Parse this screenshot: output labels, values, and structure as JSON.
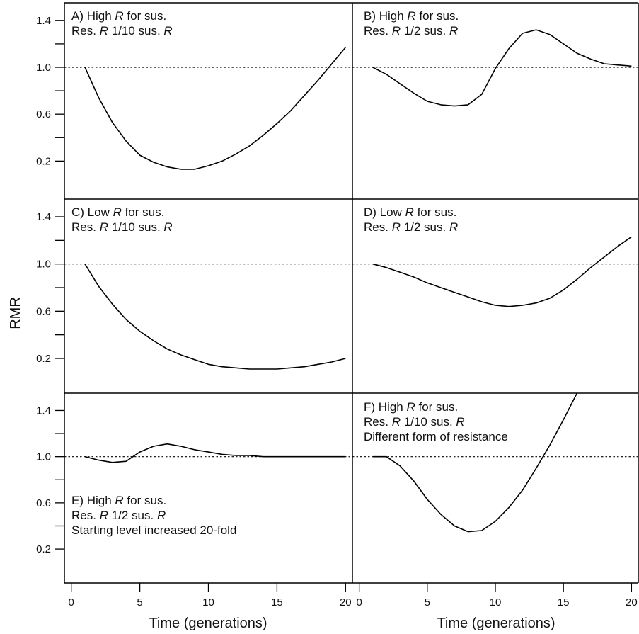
{
  "chart_data": {
    "type": "line",
    "ylabel": "RMR",
    "xlabel": "Time (generations)",
    "x_ticks": [
      "0",
      "5",
      "10",
      "15",
      "20"
    ],
    "y_ticks": [
      "1.4",
      "1.0",
      "0.6",
      "0.2"
    ],
    "xlim": [
      -0.5,
      20.5
    ],
    "ylim": [
      -0.1,
      1.55
    ],
    "reference_line": 1.0,
    "grid": false,
    "panels": [
      {
        "id": "A",
        "label_lines": [
          [
            {
              "t": "A) High "
            },
            {
              "t": "R",
              "i": true
            },
            {
              "t": " for sus."
            }
          ],
          [
            {
              "t": "Res. "
            },
            {
              "t": "R",
              "i": true
            },
            {
              "t": " 1/10 sus. "
            },
            {
              "t": "R",
              "i": true
            }
          ]
        ],
        "x": [
          1,
          2,
          3,
          4,
          5,
          6,
          7,
          8,
          9,
          10,
          11,
          12,
          13,
          14,
          15,
          16,
          17,
          18,
          19,
          20
        ],
        "y": [
          1.0,
          0.74,
          0.53,
          0.37,
          0.25,
          0.19,
          0.15,
          0.13,
          0.13,
          0.16,
          0.2,
          0.26,
          0.33,
          0.42,
          0.52,
          0.63,
          0.76,
          0.89,
          1.03,
          1.17
        ]
      },
      {
        "id": "B",
        "label_lines": [
          [
            {
              "t": "B) High "
            },
            {
              "t": "R",
              "i": true
            },
            {
              "t": " for sus."
            }
          ],
          [
            {
              "t": "Res. "
            },
            {
              "t": "R",
              "i": true
            },
            {
              "t": " 1/2 sus. "
            },
            {
              "t": "R",
              "i": true
            }
          ]
        ],
        "x": [
          1,
          2,
          3,
          4,
          5,
          6,
          7,
          8,
          9,
          10,
          11,
          12,
          13,
          14,
          15,
          16,
          17,
          18,
          19,
          20
        ],
        "y": [
          1.0,
          0.94,
          0.86,
          0.78,
          0.71,
          0.68,
          0.67,
          0.68,
          0.77,
          0.99,
          1.16,
          1.29,
          1.32,
          1.28,
          1.2,
          1.12,
          1.07,
          1.03,
          1.02,
          1.01
        ]
      },
      {
        "id": "C",
        "label_lines": [
          [
            {
              "t": "C) Low "
            },
            {
              "t": "R",
              "i": true
            },
            {
              "t": " for sus."
            }
          ],
          [
            {
              "t": "Res. "
            },
            {
              "t": "R",
              "i": true
            },
            {
              "t": " 1/10 sus. "
            },
            {
              "t": "R",
              "i": true
            }
          ]
        ],
        "x": [
          1,
          2,
          3,
          4,
          5,
          6,
          7,
          8,
          9,
          10,
          11,
          12,
          13,
          14,
          15,
          16,
          17,
          18,
          19,
          20
        ],
        "y": [
          1.0,
          0.81,
          0.66,
          0.53,
          0.43,
          0.35,
          0.28,
          0.23,
          0.19,
          0.15,
          0.13,
          0.12,
          0.11,
          0.11,
          0.11,
          0.12,
          0.13,
          0.15,
          0.17,
          0.2
        ]
      },
      {
        "id": "D",
        "label_lines": [
          [
            {
              "t": "D) Low "
            },
            {
              "t": "R",
              "i": true
            },
            {
              "t": " for sus."
            }
          ],
          [
            {
              "t": "Res. "
            },
            {
              "t": "R",
              "i": true
            },
            {
              "t": " 1/2 sus. "
            },
            {
              "t": "R",
              "i": true
            }
          ]
        ],
        "x": [
          1,
          2,
          3,
          4,
          5,
          6,
          7,
          8,
          9,
          10,
          11,
          12,
          13,
          14,
          15,
          16,
          17,
          18,
          19,
          20
        ],
        "y": [
          1.0,
          0.97,
          0.93,
          0.89,
          0.84,
          0.8,
          0.76,
          0.72,
          0.68,
          0.65,
          0.64,
          0.65,
          0.67,
          0.71,
          0.78,
          0.87,
          0.97,
          1.06,
          1.15,
          1.23
        ]
      },
      {
        "id": "E",
        "label_lines": [
          [
            {
              "t": "E) High "
            },
            {
              "t": "R",
              "i": true
            },
            {
              "t": " for sus."
            }
          ],
          [
            {
              "t": "Res. "
            },
            {
              "t": "R",
              "i": true
            },
            {
              "t": " 1/2 sus. "
            },
            {
              "t": "R",
              "i": true
            }
          ],
          [
            {
              "t": "Starting level increased 20-fold"
            }
          ]
        ],
        "x": [
          1,
          2,
          3,
          4,
          5,
          6,
          7,
          8,
          9,
          10,
          11,
          12,
          13,
          14,
          15,
          16,
          17,
          18,
          19,
          20
        ],
        "y": [
          1.0,
          0.97,
          0.95,
          0.96,
          1.04,
          1.09,
          1.11,
          1.09,
          1.06,
          1.04,
          1.02,
          1.01,
          1.01,
          1.0,
          1.0,
          1.0,
          1.0,
          1.0,
          1.0,
          1.0
        ]
      },
      {
        "id": "F",
        "label_lines": [
          [
            {
              "t": "F) High "
            },
            {
              "t": "R",
              "i": true
            },
            {
              "t": " for sus."
            }
          ],
          [
            {
              "t": "Res. "
            },
            {
              "t": "R",
              "i": true
            },
            {
              "t": " 1/10 sus. "
            },
            {
              "t": "R",
              "i": true
            }
          ],
          [
            {
              "t": "Different form of resistance"
            }
          ]
        ],
        "x": [
          1,
          2,
          3,
          4,
          5,
          6,
          7,
          8,
          9,
          10,
          11,
          12,
          13,
          14,
          15,
          16
        ],
        "y": [
          1.0,
          1.0,
          0.92,
          0.79,
          0.63,
          0.5,
          0.4,
          0.35,
          0.36,
          0.44,
          0.56,
          0.71,
          0.9,
          1.1,
          1.32,
          1.55
        ]
      }
    ]
  }
}
